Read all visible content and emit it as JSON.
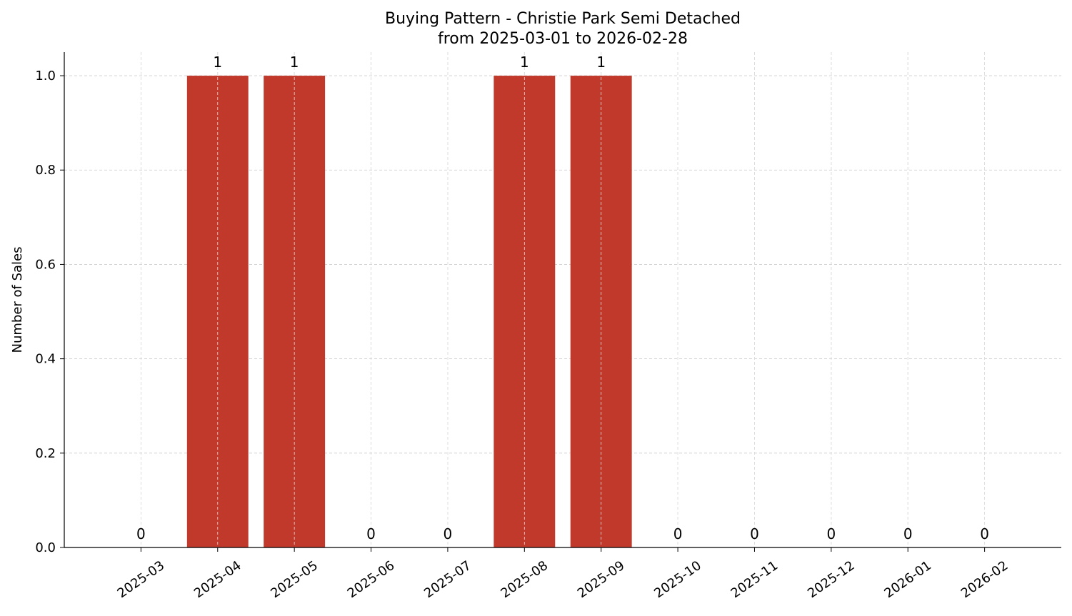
{
  "chart_data": {
    "type": "bar",
    "title": "Buying Pattern - Christie Park Semi Detached",
    "subtitle": "from 2025-03-01 to 2026-02-28",
    "xlabel": "",
    "ylabel": "Number of Sales",
    "categories": [
      "2025-03",
      "2025-04",
      "2025-05",
      "2025-06",
      "2025-07",
      "2025-08",
      "2025-09",
      "2025-10",
      "2025-11",
      "2025-12",
      "2026-01",
      "2026-02"
    ],
    "values": [
      0,
      1,
      1,
      0,
      0,
      1,
      1,
      0,
      0,
      0,
      0,
      0
    ],
    "data_labels": [
      "0",
      "1",
      "1",
      "0",
      "0",
      "1",
      "1",
      "0",
      "0",
      "0",
      "0",
      "0"
    ],
    "ylim": [
      0,
      1.05
    ],
    "yticks": [
      "0.0",
      "0.2",
      "0.4",
      "0.6",
      "0.8",
      "1.0"
    ],
    "grid": true,
    "bar_color": "#c0392b",
    "x_tick_rotation_deg": 35
  }
}
